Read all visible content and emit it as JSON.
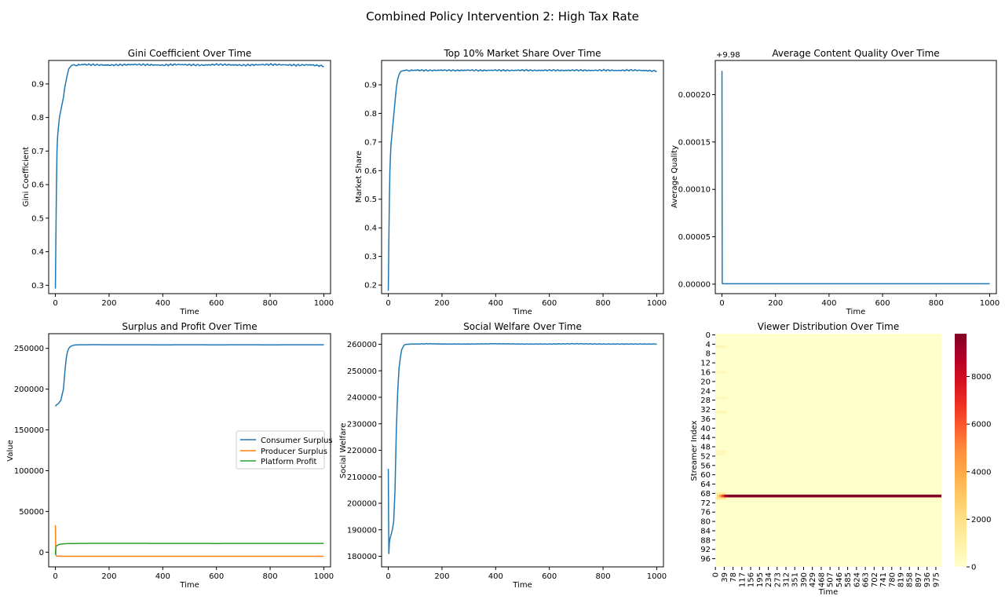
{
  "figure": {
    "suptitle": "Combined Policy Intervention 2: High Tax Rate"
  },
  "colors": {
    "blue": "#1f77b4",
    "orange": "#ff7f0e",
    "green": "#2ca02c"
  },
  "chart_data": [
    {
      "id": "gini",
      "type": "line",
      "title": "Gini Coefficient Over Time",
      "xlabel": "Time",
      "ylabel": "Gini Coefficient",
      "xlim": [
        -25,
        1025
      ],
      "ylim": [
        0.275,
        0.97
      ],
      "xticks": [
        0,
        200,
        400,
        600,
        800,
        1000
      ],
      "yticks": [
        0.3,
        0.4,
        0.5,
        0.6,
        0.7,
        0.8,
        0.9
      ],
      "ytick_labels": [
        "0.3",
        "0.4",
        "0.5",
        "0.6",
        "0.7",
        "0.8",
        "0.9"
      ],
      "series": [
        {
          "color": "blue",
          "x": [
            0,
            2,
            4,
            6,
            8,
            10,
            15,
            20,
            25,
            30,
            35,
            40,
            45,
            50,
            60,
            70,
            80,
            100,
            150,
            200,
            250,
            300,
            350,
            400,
            450,
            500,
            550,
            600,
            650,
            700,
            750,
            800,
            850,
            900,
            950,
            1000
          ],
          "y": [
            0.29,
            0.45,
            0.6,
            0.7,
            0.74,
            0.76,
            0.8,
            0.82,
            0.84,
            0.86,
            0.89,
            0.91,
            0.93,
            0.945,
            0.955,
            0.957,
            0.956,
            0.958,
            0.957,
            0.956,
            0.957,
            0.958,
            0.957,
            0.956,
            0.958,
            0.957,
            0.956,
            0.958,
            0.957,
            0.956,
            0.957,
            0.958,
            0.957,
            0.956,
            0.957,
            0.953
          ],
          "noise": 0.002
        }
      ]
    },
    {
      "id": "top10",
      "type": "line",
      "title": "Top 10% Market Share Over Time",
      "xlabel": "Time",
      "ylabel": "Market Share",
      "xlim": [
        -25,
        1025
      ],
      "ylim": [
        0.17,
        0.985
      ],
      "xticks": [
        0,
        200,
        400,
        600,
        800,
        1000
      ],
      "yticks": [
        0.2,
        0.3,
        0.4,
        0.5,
        0.6,
        0.7,
        0.8,
        0.9
      ],
      "ytick_labels": [
        "0.2",
        "0.3",
        "0.4",
        "0.5",
        "0.6",
        "0.7",
        "0.8",
        "0.9"
      ],
      "series": [
        {
          "color": "blue",
          "x": [
            0,
            2,
            4,
            6,
            8,
            10,
            15,
            20,
            25,
            30,
            35,
            40,
            45,
            50,
            60,
            70,
            80,
            100,
            150,
            200,
            250,
            300,
            350,
            400,
            450,
            500,
            550,
            600,
            650,
            700,
            750,
            800,
            850,
            900,
            950,
            1000
          ],
          "y": [
            0.18,
            0.35,
            0.5,
            0.6,
            0.65,
            0.69,
            0.74,
            0.79,
            0.84,
            0.89,
            0.92,
            0.935,
            0.945,
            0.948,
            0.95,
            0.951,
            0.95,
            0.951,
            0.95,
            0.951,
            0.95,
            0.951,
            0.95,
            0.951,
            0.95,
            0.951,
            0.95,
            0.951,
            0.95,
            0.951,
            0.95,
            0.951,
            0.95,
            0.951,
            0.95,
            0.948
          ],
          "noise": 0.002
        }
      ]
    },
    {
      "id": "quality",
      "type": "line",
      "title": "Average Content Quality Over Time",
      "xlabel": "Time",
      "ylabel": "Average Quality",
      "offset_label": "+9.98",
      "xlim": [
        -25,
        1025
      ],
      "ylim": [
        -1e-05,
        0.000236
      ],
      "xticks": [
        0,
        200,
        400,
        600,
        800,
        1000
      ],
      "yticks": [
        0,
        5e-05,
        0.0001,
        0.00015,
        0.0002
      ],
      "ytick_labels": [
        "0.00000",
        "0.00005",
        "0.00010",
        "0.00015",
        "0.00020"
      ],
      "series": [
        {
          "color": "blue",
          "x": [
            0,
            1,
            2,
            1000
          ],
          "y": [
            0.000225,
            1e-06,
            5e-07,
            5e-07
          ],
          "noise": 0
        }
      ]
    },
    {
      "id": "surplus",
      "type": "line",
      "title": "Surplus and Profit Over Time",
      "xlabel": "Time",
      "ylabel": "Value",
      "xlim": [
        -25,
        1025
      ],
      "ylim": [
        -18000,
        268000
      ],
      "xticks": [
        0,
        200,
        400,
        600,
        800,
        1000
      ],
      "yticks": [
        0,
        50000,
        100000,
        150000,
        200000,
        250000
      ],
      "ytick_labels": [
        "0",
        "50000",
        "100000",
        "150000",
        "200000",
        "250000"
      ],
      "legend": "center-right",
      "series": [
        {
          "name": "Consumer Surplus",
          "color": "blue",
          "x": [
            0,
            5,
            10,
            20,
            30,
            35,
            40,
            45,
            50,
            55,
            60,
            65,
            70,
            80,
            100,
            150,
            200,
            300,
            400,
            500,
            600,
            700,
            800,
            900,
            1000
          ],
          "y": [
            179000,
            181000,
            182000,
            186000,
            200000,
            220000,
            237000,
            246000,
            250000,
            252000,
            253000,
            253500,
            254000,
            254300,
            254400,
            254500,
            254400,
            254400,
            254300,
            254400,
            254300,
            254400,
            254300,
            254400,
            254400
          ],
          "noise": 0
        },
        {
          "name": "Producer Surplus",
          "color": "orange",
          "x": [
            0,
            1,
            2,
            3,
            5,
            10,
            20,
            50,
            100,
            200,
            400,
            600,
            800,
            1000
          ],
          "y": [
            33000,
            10000,
            -2000,
            -4500,
            -4800,
            -4900,
            -4950,
            -5000,
            -5000,
            -5000,
            -5000,
            -5000,
            -5000,
            -5000
          ],
          "noise": 0
        },
        {
          "name": "Platform Profit",
          "color": "green",
          "x": [
            0,
            1,
            2,
            3,
            5,
            10,
            20,
            30,
            50,
            80,
            100,
            200,
            400,
            600,
            800,
            1000
          ],
          "y": [
            -3000,
            3000,
            6000,
            7000,
            8000,
            9000,
            10000,
            10300,
            10600,
            10700,
            10800,
            10900,
            10800,
            10700,
            10800,
            10800
          ],
          "noise": 0
        }
      ]
    },
    {
      "id": "welfare",
      "type": "line",
      "title": "Social Welfare Over Time",
      "xlabel": "Time",
      "ylabel": "Social Welfare",
      "xlim": [
        -25,
        1025
      ],
      "ylim": [
        176000,
        264000
      ],
      "xticks": [
        0,
        200,
        400,
        600,
        800,
        1000
      ],
      "yticks": [
        180000,
        190000,
        200000,
        210000,
        220000,
        230000,
        240000,
        250000,
        260000
      ],
      "ytick_labels": [
        "180000",
        "190000",
        "200000",
        "210000",
        "220000",
        "230000",
        "240000",
        "250000",
        "260000"
      ],
      "series": [
        {
          "color": "blue",
          "x": [
            0,
            1,
            2,
            4,
            6,
            10,
            15,
            20,
            25,
            30,
            35,
            40,
            45,
            50,
            55,
            60,
            70,
            80,
            100,
            150,
            200,
            300,
            400,
            500,
            600,
            700,
            800,
            900,
            1000
          ],
          "y": [
            213000,
            196000,
            181000,
            185000,
            186500,
            188000,
            190000,
            193000,
            205000,
            228000,
            242000,
            251000,
            255000,
            258000,
            259000,
            259800,
            260000,
            260100,
            260100,
            260200,
            260100,
            260100,
            260200,
            260100,
            260100,
            260200,
            260100,
            260100,
            260100
          ],
          "noise": 60
        }
      ]
    },
    {
      "id": "viewers",
      "type": "heatmap",
      "title": "Viewer Distribution Over Time",
      "xlabel": "Time",
      "ylabel": "Streamer Index",
      "rows": 100,
      "cols": 1000,
      "max_value": 9800,
      "hot_row": 69,
      "hot_row_value": 9700,
      "early_hot_cells": [
        {
          "row": 5,
          "value": 600
        },
        {
          "row": 16,
          "value": 500
        },
        {
          "row": 27,
          "value": 400
        },
        {
          "row": 33,
          "value": 700
        },
        {
          "row": 50,
          "value": 600
        },
        {
          "row": 51,
          "value": 500
        },
        {
          "row": 70,
          "value": 1500
        },
        {
          "row": 68,
          "value": 1200
        }
      ],
      "xtick_labels": [
        "0",
        "39",
        "78",
        "117",
        "156",
        "195",
        "234",
        "273",
        "312",
        "351",
        "390",
        "429",
        "468",
        "507",
        "546",
        "585",
        "624",
        "663",
        "702",
        "741",
        "780",
        "819",
        "858",
        "897",
        "936",
        "975"
      ],
      "ytick_labels": [
        "0",
        "4",
        "8",
        "12",
        "16",
        "20",
        "24",
        "28",
        "32",
        "36",
        "40",
        "44",
        "48",
        "52",
        "56",
        "60",
        "64",
        "68",
        "72",
        "76",
        "80",
        "84",
        "88",
        "92",
        "96"
      ],
      "colorbar_ticks": [
        0,
        2000,
        4000,
        6000,
        8000
      ],
      "colorbar_labels": [
        "0",
        "2000",
        "4000",
        "6000",
        "8000"
      ],
      "colormap": "YlOrRd"
    }
  ]
}
